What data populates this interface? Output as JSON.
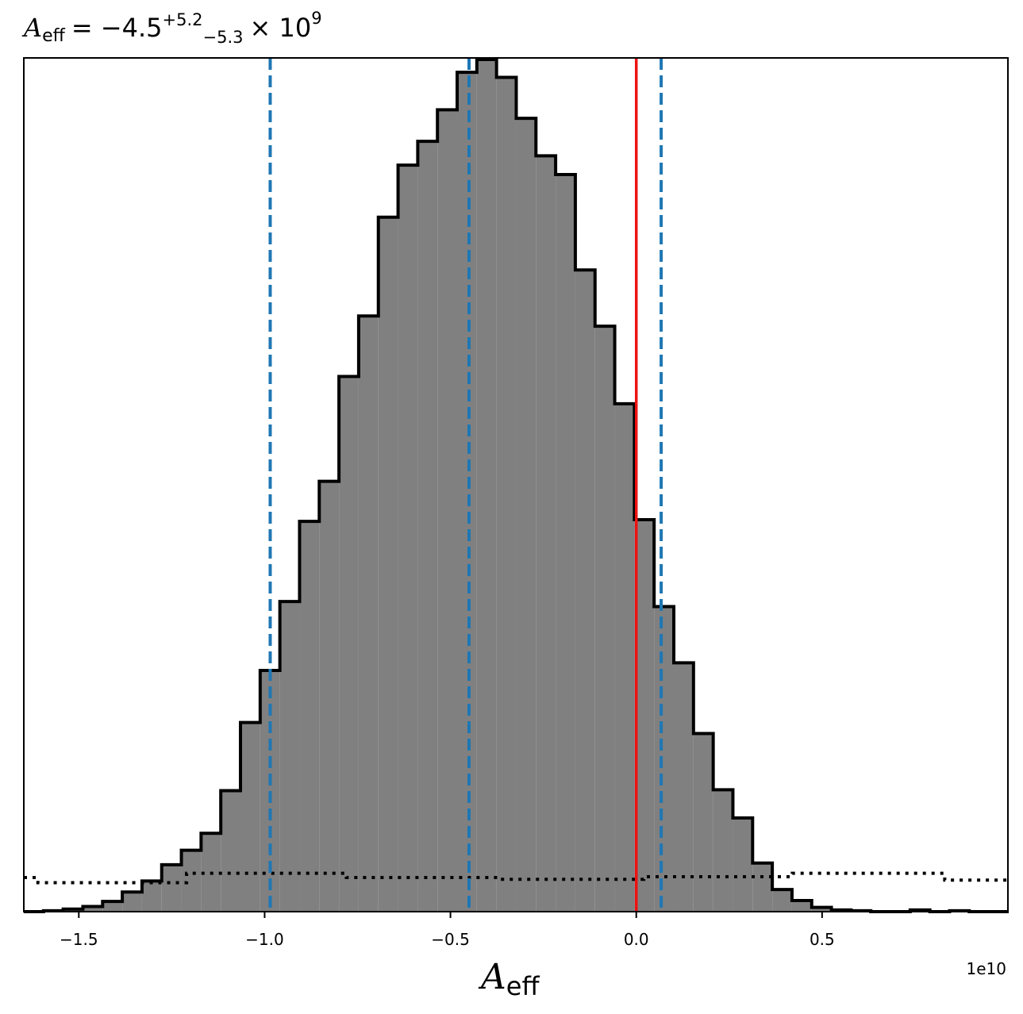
{
  "chart_data": {
    "type": "histogram",
    "title": {
      "symbol": "A",
      "symbol_sub": "eff",
      "equals": "= −4.5",
      "sup": "+5.2",
      "sub": "−5.3",
      "times": "× 10",
      "exp": "9"
    },
    "xlabel": {
      "symbol": "A",
      "sub": "eff"
    },
    "x_offset_label": "1e10",
    "xlim": [
      -1.648,
      1.0
    ],
    "ylim": [
      0,
      1.0
    ],
    "x_ticks": [
      {
        "value": -1.5,
        "label": "−1.5"
      },
      {
        "value": -1.0,
        "label": "−1.0"
      },
      {
        "value": -0.5,
        "label": "−0.5"
      },
      {
        "value": 0.0,
        "label": "0.0"
      },
      {
        "value": 0.5,
        "label": "0.5"
      }
    ],
    "bin_edges": [
      -1.648,
      -1.595,
      -1.542,
      -1.489,
      -1.436,
      -1.383,
      -1.33,
      -1.277,
      -1.224,
      -1.171,
      -1.118,
      -1.065,
      -1.012,
      -0.959,
      -0.906,
      -0.853,
      -0.8,
      -0.747,
      -0.694,
      -0.641,
      -0.588,
      -0.535,
      -0.482,
      -0.429,
      -0.376,
      -0.323,
      -0.27,
      -0.217,
      -0.164,
      -0.111,
      -0.058,
      -0.005,
      0.048,
      0.101,
      0.154,
      0.207,
      0.26,
      0.313,
      0.366,
      0.419,
      0.472,
      0.525,
      0.578,
      0.631,
      0.684,
      0.737,
      0.79,
      0.843,
      0.896,
      0.949,
      1.002
    ],
    "posterior_counts": [
      0.0,
      0.001,
      0.003,
      0.006,
      0.012,
      0.023,
      0.036,
      0.055,
      0.072,
      0.092,
      0.142,
      0.222,
      0.283,
      0.364,
      0.458,
      0.505,
      0.628,
      0.699,
      0.815,
      0.876,
      0.904,
      0.941,
      0.985,
      1.0,
      0.979,
      0.931,
      0.887,
      0.865,
      0.753,
      0.687,
      0.596,
      0.46,
      0.358,
      0.292,
      0.209,
      0.143,
      0.11,
      0.057,
      0.026,
      0.013,
      0.005,
      0.002,
      0.001,
      0.0,
      0.0,
      0.002,
      0.0,
      0.001,
      0.0,
      0.0
    ],
    "prior_counts_edges": [
      -1.648,
      -1.61,
      -1.23,
      -1.21,
      -0.8,
      -0.78,
      -0.38,
      -0.36,
      0.0,
      0.02,
      0.4,
      0.42,
      0.81,
      0.83,
      1.002
    ],
    "prior_counts": [
      0.04,
      0.034,
      0.034,
      0.045,
      0.045,
      0.04,
      0.04,
      0.038,
      0.038,
      0.041,
      0.041,
      0.045,
      0.045,
      0.037
    ],
    "vlines": [
      {
        "x": -0.985,
        "style": "dashed",
        "color": "#1f77b4"
      },
      {
        "x": -0.45,
        "style": "dashed",
        "color": "#1f77b4"
      },
      {
        "x": 0.067,
        "style": "dashed",
        "color": "#1f77b4"
      },
      {
        "x": 0.0,
        "style": "solid",
        "color": "#ee1111"
      }
    ],
    "grid": false,
    "hist_fill": "#808080",
    "hist_edge": "#000000"
  }
}
